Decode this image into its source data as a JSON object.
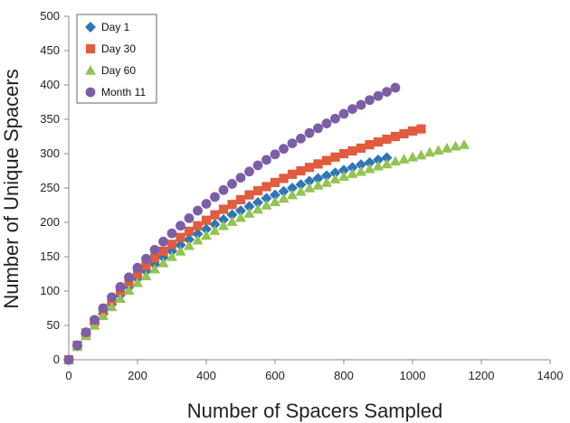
{
  "chart_data": {
    "type": "scatter",
    "title": "",
    "xlabel": "Number of Spacers Sampled",
    "ylabel": "Number of Unique Spacers",
    "xlim": [
      0,
      1400
    ],
    "ylim": [
      0,
      500
    ],
    "xticks": [
      0,
      200,
      400,
      600,
      800,
      1000,
      1200,
      1400
    ],
    "yticks": [
      0,
      50,
      100,
      150,
      200,
      250,
      300,
      350,
      400,
      450,
      500
    ],
    "grid": false,
    "legend_position": "top-left",
    "series": [
      {
        "name": "Day 1",
        "marker": "diamond",
        "color": "#2E75B6",
        "x": [
          0,
          25,
          50,
          75,
          100,
          125,
          150,
          175,
          200,
          225,
          250,
          275,
          300,
          325,
          350,
          375,
          400,
          425,
          450,
          475,
          500,
          525,
          550,
          575,
          600,
          625,
          650,
          675,
          700,
          725,
          750,
          775,
          800,
          825,
          850,
          875,
          900,
          925
        ],
        "y": [
          0,
          20,
          37,
          53,
          67,
          81,
          94,
          106,
          118,
          129,
          139,
          149,
          158,
          167,
          175,
          183,
          190,
          197,
          204,
          211,
          217,
          223,
          229,
          235,
          240,
          245,
          250,
          255,
          260,
          264,
          268,
          272,
          276,
          280,
          284,
          287,
          291,
          294
        ]
      },
      {
        "name": "Day 30",
        "marker": "square",
        "color": "#E15B3E",
        "x": [
          0,
          25,
          50,
          75,
          100,
          125,
          150,
          175,
          200,
          225,
          250,
          275,
          300,
          325,
          350,
          375,
          400,
          425,
          450,
          475,
          500,
          525,
          550,
          575,
          600,
          625,
          650,
          675,
          700,
          725,
          750,
          775,
          800,
          825,
          850,
          875,
          900,
          925,
          950,
          975,
          1000,
          1025
        ],
        "y": [
          0,
          21,
          39,
          56,
          71,
          86,
          100,
          113,
          125,
          137,
          148,
          158,
          168,
          178,
          187,
          195,
          203,
          211,
          219,
          226,
          233,
          240,
          246,
          252,
          258,
          264,
          270,
          275,
          280,
          285,
          290,
          295,
          300,
          304,
          308,
          313,
          317,
          321,
          325,
          329,
          333,
          336
        ]
      },
      {
        "name": "Day 60",
        "marker": "triangle",
        "color": "#92C353",
        "x": [
          0,
          25,
          50,
          75,
          100,
          125,
          150,
          175,
          200,
          225,
          250,
          275,
          300,
          325,
          350,
          375,
          400,
          425,
          450,
          475,
          500,
          525,
          550,
          575,
          600,
          625,
          650,
          675,
          700,
          725,
          750,
          775,
          800,
          825,
          850,
          875,
          900,
          925,
          950,
          975,
          1000,
          1025,
          1050,
          1075,
          1100,
          1125,
          1150
        ],
        "y": [
          0,
          19,
          35,
          50,
          64,
          77,
          89,
          101,
          112,
          122,
          132,
          141,
          150,
          158,
          166,
          174,
          181,
          188,
          195,
          201,
          207,
          213,
          219,
          225,
          230,
          235,
          240,
          245,
          250,
          254,
          258,
          263,
          267,
          271,
          274,
          278,
          282,
          285,
          289,
          292,
          295,
          298,
          302,
          305,
          308,
          311,
          313
        ]
      },
      {
        "name": "Month 11",
        "marker": "circle",
        "color": "#7B5EA7",
        "x": [
          0,
          25,
          50,
          75,
          100,
          125,
          150,
          175,
          200,
          225,
          250,
          275,
          300,
          325,
          350,
          375,
          400,
          425,
          450,
          475,
          500,
          525,
          550,
          575,
          600,
          625,
          650,
          675,
          700,
          725,
          750,
          775,
          800,
          825,
          850,
          875,
          900,
          925,
          950
        ],
        "y": [
          0,
          21,
          40,
          58,
          75,
          91,
          106,
          120,
          134,
          147,
          160,
          172,
          184,
          195,
          206,
          217,
          227,
          237,
          247,
          256,
          265,
          274,
          283,
          291,
          299,
          307,
          315,
          322,
          330,
          337,
          344,
          351,
          358,
          365,
          371,
          378,
          384,
          390,
          396
        ]
      }
    ]
  }
}
